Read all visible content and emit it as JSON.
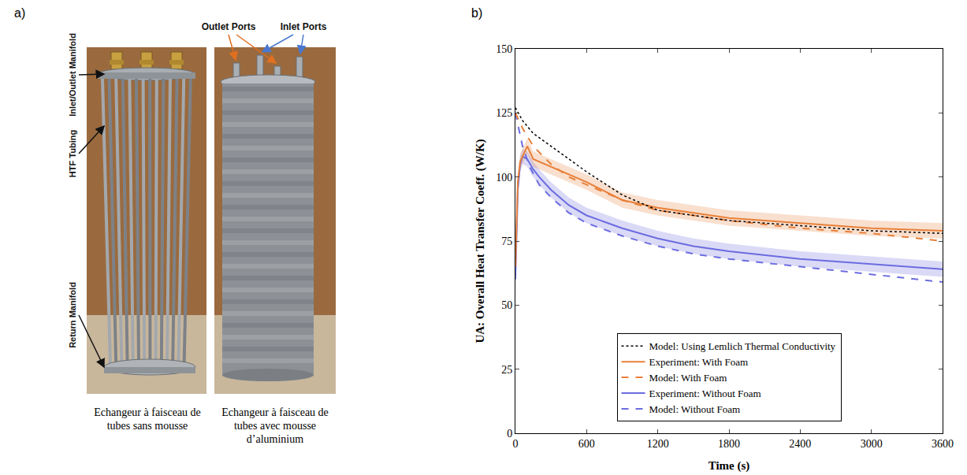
{
  "panel_a": {
    "label": "a)",
    "photos": [
      {
        "caption": "Echangeur à faisceau de tubes sans mousse",
        "callouts": [
          "Inlet/Outlet Manifold",
          "HTF Tubing",
          "Return Manifold"
        ]
      },
      {
        "caption": "Echangeur à faisceau de tubes avec mousse d’aluminium",
        "callouts": [
          "Outlet Ports",
          "Inlet Ports"
        ]
      }
    ]
  },
  "panel_b_label": "b)",
  "chart_data": {
    "type": "line",
    "x_label": "Time (s)",
    "y_label": "UA: Overall Heat Transfer Coeff. (W/K)",
    "xlim": [
      0,
      3600
    ],
    "xticks": [
      0,
      600,
      1200,
      1800,
      2400,
      3000,
      3600
    ],
    "ylim": [
      0,
      150
    ],
    "yticks": [
      0,
      25,
      50,
      75,
      100,
      125,
      150
    ],
    "grid": false,
    "legend": "bottom",
    "series": [
      {
        "name": "Model: Without Foam",
        "color": "#6c6ce0",
        "line_style": "dash",
        "x": [
          0,
          30,
          60,
          120,
          200,
          300,
          450,
          600,
          900,
          1200,
          1500,
          1800,
          2400,
          3000,
          3600
        ],
        "values": [
          125,
          118,
          112,
          104,
          97,
          92,
          86,
          82,
          77,
          73,
          70,
          68,
          65,
          62,
          59
        ]
      },
      {
        "name": "Experiment: Without Foam",
        "color": "#6c6ce0",
        "line_style": "solid",
        "x": [
          0,
          20,
          40,
          60,
          100,
          150,
          200,
          300,
          450,
          600,
          900,
          1200,
          1500,
          1800,
          2400,
          3000,
          3600
        ],
        "values": [
          60,
          95,
          105,
          108,
          107,
          103,
          100,
          95,
          89,
          85,
          80,
          76,
          73,
          71,
          68,
          66,
          64
        ],
        "error": [
          3,
          3,
          3,
          3,
          3,
          3,
          3,
          3,
          3,
          3,
          3,
          3,
          3,
          3,
          3,
          3,
          3
        ]
      },
      {
        "name": "Model: With Foam",
        "color": "#e8803a",
        "line_style": "dash",
        "x": [
          0,
          60,
          150,
          300,
          450,
          600,
          900,
          1200,
          1500,
          1800,
          2400,
          3000,
          3600
        ],
        "values": [
          125,
          119,
          112,
          105,
          100,
          97,
          91,
          87,
          85,
          83,
          80,
          78,
          75
        ]
      },
      {
        "name": "Experiment: With Foam",
        "color": "#e8803a",
        "line_style": "solid",
        "x": [
          0,
          20,
          40,
          60,
          100,
          150,
          200,
          300,
          450,
          600,
          900,
          1200,
          1500,
          1800,
          2400,
          3000,
          3600
        ],
        "values": [
          65,
          98,
          106,
          108,
          112,
          107,
          106,
          104,
          101,
          98,
          91,
          88,
          86,
          84,
          82,
          80,
          79
        ],
        "error": [
          3,
          3,
          3,
          3,
          3,
          3,
          3,
          3,
          3,
          3,
          3,
          3,
          3,
          3,
          3,
          3,
          3
        ]
      },
      {
        "name": "Model: Using Lemlich Thermal Conductivity",
        "color": "#000000",
        "line_style": "dot",
        "x": [
          0,
          60,
          150,
          300,
          450,
          600,
          900,
          1200,
          1500,
          1800,
          2400,
          3000,
          3600
        ],
        "values": [
          127,
          122,
          117,
          112,
          107,
          102,
          93,
          87,
          85,
          83,
          81,
          79,
          78
        ]
      }
    ]
  }
}
